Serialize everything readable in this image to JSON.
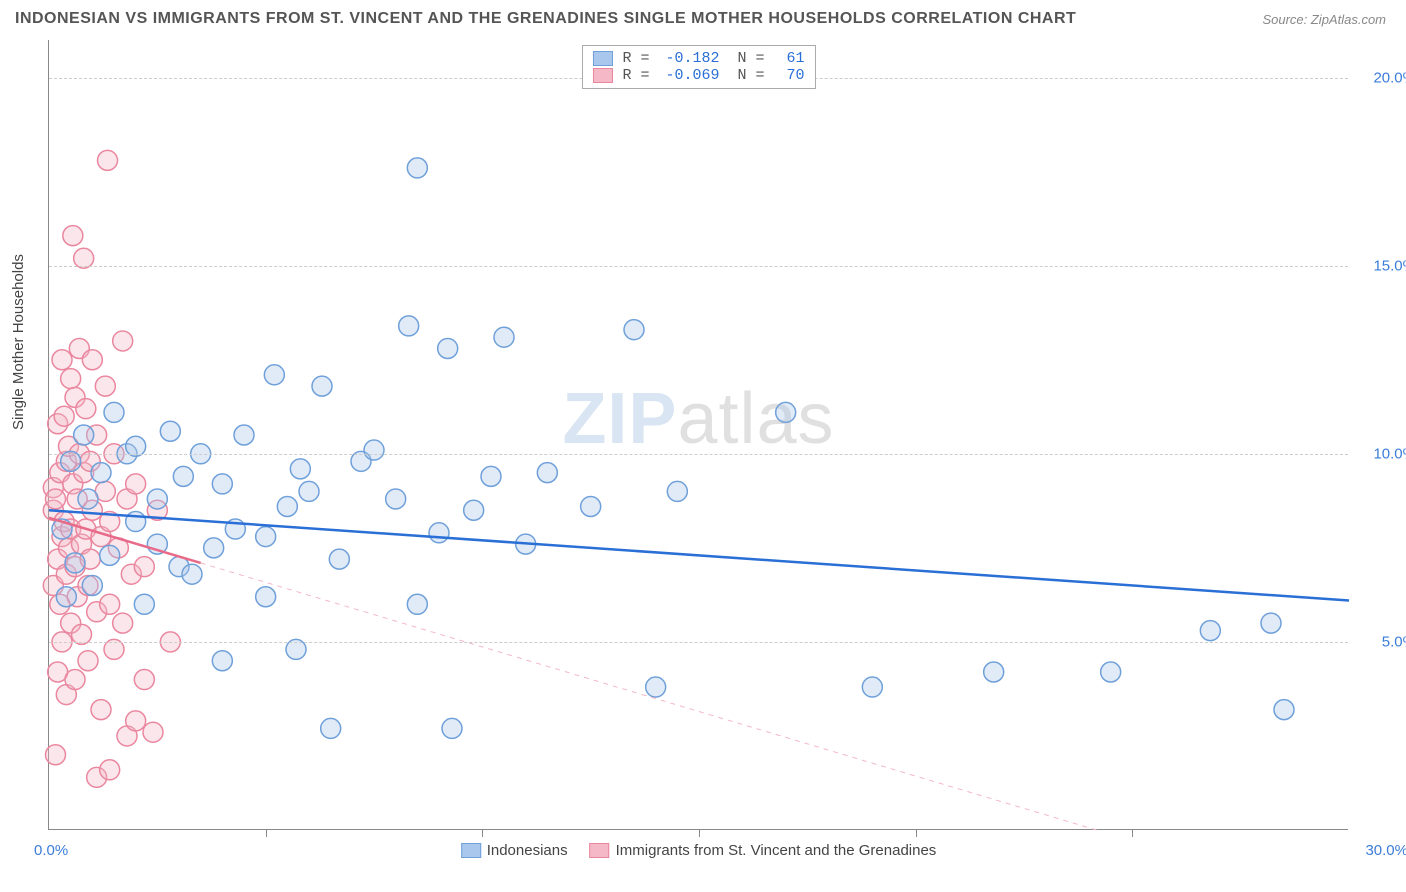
{
  "title": "INDONESIAN VS IMMIGRANTS FROM ST. VINCENT AND THE GRENADINES SINGLE MOTHER HOUSEHOLDS CORRELATION CHART",
  "source": "Source: ZipAtlas.com",
  "ylabel": "Single Mother Households",
  "watermark_a": "ZIP",
  "watermark_b": "atlas",
  "chart": {
    "type": "scatter",
    "xlim": [
      0,
      30
    ],
    "ylim": [
      0,
      21
    ],
    "xtick_step": 5,
    "background": "#ffffff",
    "grid_color": "#cccccc",
    "axis_color": "#888888"
  },
  "yticks": [
    {
      "v": 5,
      "label": "5.0%",
      "color": "#3b7dd8"
    },
    {
      "v": 10,
      "label": "10.0%",
      "color": "#3b7dd8"
    },
    {
      "v": 15,
      "label": "15.0%",
      "color": "#3b7dd8"
    },
    {
      "v": 20,
      "label": "20.0%",
      "color": "#3b7dd8"
    }
  ],
  "xaxis": {
    "start_label": "0.0%",
    "end_label": "30.0%",
    "label_color": "#3b7dd8"
  },
  "series": [
    {
      "name": "Indonesians",
      "color_fill": "#a9c7ec",
      "color_stroke": "#6fa0da",
      "marker_r": 10,
      "R": "-0.182",
      "N": "61",
      "trend": {
        "x1": 0,
        "y1": 8.5,
        "x2": 30,
        "y2": 6.1,
        "solid_color": "#2a6fd6",
        "dash_color": "#a9c7ec",
        "solid_to_x": 30
      },
      "points": [
        [
          0.3,
          8.0
        ],
        [
          0.4,
          6.2
        ],
        [
          0.5,
          9.8
        ],
        [
          0.6,
          7.1
        ],
        [
          0.8,
          10.5
        ],
        [
          0.9,
          8.8
        ],
        [
          1.0,
          6.5
        ],
        [
          1.2,
          9.5
        ],
        [
          1.4,
          7.3
        ],
        [
          1.5,
          11.1
        ],
        [
          1.8,
          10.0
        ],
        [
          2.0,
          8.2
        ],
        [
          2.0,
          10.2
        ],
        [
          2.2,
          6.0
        ],
        [
          2.5,
          7.6
        ],
        [
          2.5,
          8.8
        ],
        [
          2.8,
          10.6
        ],
        [
          3.0,
          7.0
        ],
        [
          3.1,
          9.4
        ],
        [
          3.3,
          6.8
        ],
        [
          3.5,
          10.0
        ],
        [
          3.8,
          7.5
        ],
        [
          4.0,
          9.2
        ],
        [
          4.0,
          4.5
        ],
        [
          4.3,
          8.0
        ],
        [
          4.5,
          10.5
        ],
        [
          5.0,
          6.2
        ],
        [
          5.0,
          7.8
        ],
        [
          5.2,
          12.1
        ],
        [
          5.5,
          8.6
        ],
        [
          5.7,
          4.8
        ],
        [
          6.0,
          9.0
        ],
        [
          6.3,
          11.8
        ],
        [
          6.5,
          2.7
        ],
        [
          6.7,
          7.2
        ],
        [
          7.2,
          9.8
        ],
        [
          7.5,
          10.1
        ],
        [
          8.0,
          8.8
        ],
        [
          8.3,
          13.4
        ],
        [
          8.5,
          17.6
        ],
        [
          8.5,
          6.0
        ],
        [
          9.0,
          7.9
        ],
        [
          9.2,
          12.8
        ],
        [
          9.3,
          2.7
        ],
        [
          9.8,
          8.5
        ],
        [
          10.2,
          9.4
        ],
        [
          10.5,
          13.1
        ],
        [
          11.0,
          7.6
        ],
        [
          11.5,
          9.5
        ],
        [
          12.5,
          8.6
        ],
        [
          13.5,
          13.3
        ],
        [
          14.0,
          3.8
        ],
        [
          14.5,
          9.0
        ],
        [
          17.0,
          11.1
        ],
        [
          19.0,
          3.8
        ],
        [
          21.8,
          4.2
        ],
        [
          24.5,
          4.2
        ],
        [
          26.8,
          5.3
        ],
        [
          28.2,
          5.5
        ],
        [
          28.5,
          3.2
        ],
        [
          5.8,
          9.6
        ]
      ]
    },
    {
      "name": "Immigrants from St. Vincent and the Grenadines",
      "color_fill": "#f4b8c6",
      "color_stroke": "#ea879f",
      "marker_r": 10,
      "R": "-0.069",
      "N": "70",
      "trend": {
        "x1": 0,
        "y1": 8.3,
        "x2": 30,
        "y2": -2.0,
        "solid_color": "#e86a89",
        "dash_color": "#f4b8c6",
        "solid_to_x": 3.5
      },
      "points": [
        [
          0.1,
          8.5
        ],
        [
          0.1,
          9.1
        ],
        [
          0.1,
          6.5
        ],
        [
          0.15,
          8.8
        ],
        [
          0.2,
          7.2
        ],
        [
          0.2,
          10.8
        ],
        [
          0.2,
          4.2
        ],
        [
          0.25,
          9.5
        ],
        [
          0.25,
          6.0
        ],
        [
          0.3,
          12.5
        ],
        [
          0.3,
          7.8
        ],
        [
          0.3,
          5.0
        ],
        [
          0.35,
          11.0
        ],
        [
          0.35,
          8.2
        ],
        [
          0.4,
          9.8
        ],
        [
          0.4,
          6.8
        ],
        [
          0.4,
          3.6
        ],
        [
          0.45,
          10.2
        ],
        [
          0.45,
          7.5
        ],
        [
          0.5,
          12.0
        ],
        [
          0.5,
          8.0
        ],
        [
          0.5,
          5.5
        ],
        [
          0.55,
          15.8
        ],
        [
          0.55,
          9.2
        ],
        [
          0.6,
          11.5
        ],
        [
          0.6,
          7.0
        ],
        [
          0.6,
          4.0
        ],
        [
          0.65,
          8.8
        ],
        [
          0.65,
          6.2
        ],
        [
          0.7,
          10.0
        ],
        [
          0.7,
          12.8
        ],
        [
          0.75,
          7.6
        ],
        [
          0.75,
          5.2
        ],
        [
          0.8,
          9.5
        ],
        [
          0.8,
          15.2
        ],
        [
          0.85,
          8.0
        ],
        [
          0.85,
          11.2
        ],
        [
          0.9,
          6.5
        ],
        [
          0.9,
          4.5
        ],
        [
          0.95,
          9.8
        ],
        [
          0.95,
          7.2
        ],
        [
          1.0,
          12.5
        ],
        [
          1.0,
          8.5
        ],
        [
          1.1,
          5.8
        ],
        [
          1.1,
          10.5
        ],
        [
          1.2,
          7.8
        ],
        [
          1.2,
          3.2
        ],
        [
          1.3,
          9.0
        ],
        [
          1.3,
          11.8
        ],
        [
          1.4,
          6.0
        ],
        [
          1.4,
          8.2
        ],
        [
          1.5,
          4.8
        ],
        [
          1.5,
          10.0
        ],
        [
          1.6,
          7.5
        ],
        [
          1.7,
          13.0
        ],
        [
          1.7,
          5.5
        ],
        [
          1.8,
          8.8
        ],
        [
          1.8,
          2.5
        ],
        [
          1.9,
          6.8
        ],
        [
          2.0,
          9.2
        ],
        [
          2.0,
          2.9
        ],
        [
          2.2,
          7.0
        ],
        [
          2.2,
          4.0
        ],
        [
          2.4,
          2.6
        ],
        [
          2.5,
          8.5
        ],
        [
          2.8,
          5.0
        ],
        [
          1.1,
          1.4
        ],
        [
          1.4,
          1.6
        ],
        [
          1.35,
          17.8
        ],
        [
          0.15,
          2.0
        ]
      ]
    }
  ],
  "legend_top": {
    "r_label": "R =",
    "n_label": "N =",
    "value_color": "#2a6fd6",
    "text_color": "#555555"
  },
  "legend_bottom": {
    "text_color": "#444444"
  }
}
